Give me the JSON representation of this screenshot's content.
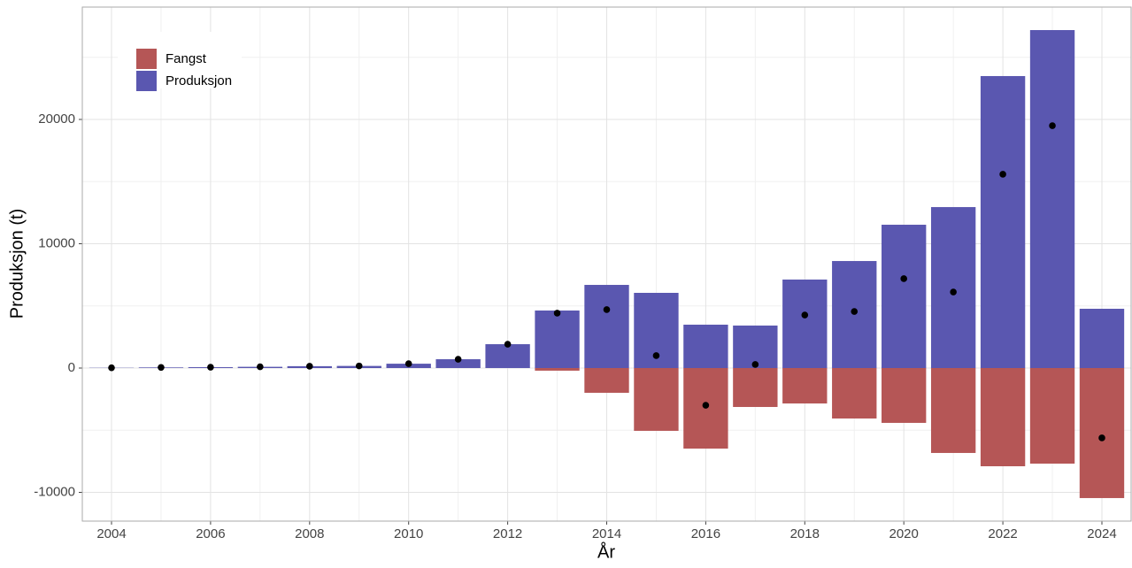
{
  "chart_data": {
    "type": "bar",
    "x_label": "År",
    "y_label": "Produksjon (t)",
    "x": [
      2004,
      2005,
      2006,
      2007,
      2008,
      2009,
      2010,
      2011,
      2012,
      2013,
      2014,
      2015,
      2016,
      2017,
      2018,
      2019,
      2020,
      2021,
      2022,
      2023,
      2024
    ],
    "series": [
      {
        "name": "Fangst",
        "color": "#b55656",
        "values": [
          0,
          0,
          0,
          0,
          0,
          0,
          0,
          0,
          0,
          -210,
          -1990,
          -5050,
          -6480,
          -3130,
          -2850,
          -4060,
          -4410,
          -6830,
          -7900,
          -7690,
          -10460
        ]
      },
      {
        "name": "Produksjon",
        "color": "#5a57b0",
        "values": [
          20,
          50,
          70,
          100,
          150,
          170,
          350,
          710,
          1920,
          4630,
          6690,
          6050,
          3490,
          3420,
          7120,
          8610,
          11530,
          12950,
          23490,
          27190,
          4770
        ]
      }
    ],
    "dots": {
      "color": "#000000",
      "values": [
        20,
        50,
        70,
        100,
        150,
        170,
        350,
        710,
        1920,
        4420,
        4700,
        1000,
        -2990,
        290,
        4270,
        4550,
        7190,
        6120,
        15590,
        19500,
        -5620
      ]
    },
    "xlim": [
      2003.41,
      2024.59
    ],
    "xticks": [
      2004,
      2006,
      2008,
      2010,
      2012,
      2014,
      2016,
      2018,
      2020,
      2022,
      2024
    ],
    "x_minor_grid": [
      2005,
      2007,
      2009,
      2011,
      2013,
      2015,
      2017,
      2019,
      2021,
      2023
    ],
    "ylim": [
      -12313,
      29040
    ],
    "yticks": [
      -10000,
      0,
      10000,
      20000
    ],
    "y_minor_grid": [
      -5000,
      5000,
      15000,
      25000
    ],
    "grid": true,
    "legend_position": "top-left"
  }
}
